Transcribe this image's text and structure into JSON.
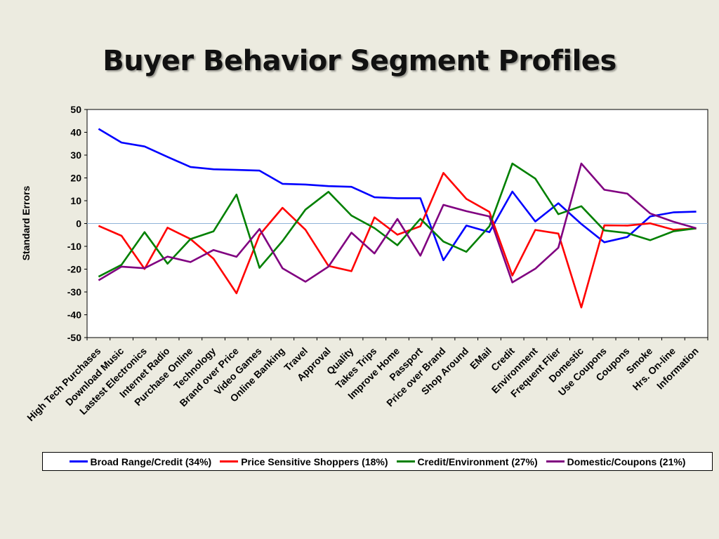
{
  "slide": {
    "title": "Buyer Behavior Segment Profiles"
  },
  "chart_data": {
    "type": "line",
    "title": "",
    "xlabel": "",
    "ylabel": "Standard Errors",
    "ylim": [
      -50,
      50
    ],
    "yticks": [
      50,
      40,
      30,
      20,
      10,
      0,
      -10,
      -20,
      -30,
      -40,
      -50
    ],
    "grid": false,
    "zero_line": true,
    "legend_position": "bottom",
    "categories": [
      "High Tech Purchases",
      "Download Music",
      "Lastest Electronics",
      "Internet Radio",
      "Purchase Online",
      "Technology",
      "Brand over Price",
      "Video Games",
      "Online Banking",
      "Travel",
      "Approval",
      "Quality",
      "Takes Trips",
      "Improve Home",
      "Passport",
      "Price over Brand",
      "Shop Around",
      "EMail",
      "Credit",
      "Environment",
      "Frequent Flier",
      "Domestic",
      "Use Coupons",
      "Coupons",
      "Smoke",
      "Hrs. On-line",
      "Information"
    ],
    "series": [
      {
        "name": "Broad Range/Credit (34%)",
        "color": "#0000ff",
        "values": [
          41.5,
          35.5,
          33.8,
          29.2,
          24.8,
          23.8,
          23.5,
          23.2,
          17.4,
          17.1,
          16.4,
          16.1,
          11.5,
          11.1,
          11.1,
          -16.1,
          -0.9,
          -3.8,
          14.0,
          0.9,
          8.9,
          -0.2,
          -8.2,
          -5.9,
          3.1,
          4.9,
          5.2
        ]
      },
      {
        "name": "Price Sensitive Shoppers (18%)",
        "color": "#ff0000",
        "values": [
          -1.0,
          -5.4,
          -19.9,
          -1.8,
          -6.8,
          -15.4,
          -30.6,
          -5.0,
          6.9,
          -2.7,
          -18.6,
          -20.9,
          2.7,
          -4.9,
          -1.2,
          22.2,
          10.8,
          5.1,
          -22.8,
          -2.8,
          -4.4,
          -36.8,
          -0.8,
          -0.9,
          0.1,
          -2.7,
          -2.2
        ]
      },
      {
        "name": "Credit/Environment (27%)",
        "color": "#008000",
        "values": [
          -23.3,
          -18.1,
          -3.8,
          -17.6,
          -6.8,
          -3.4,
          12.7,
          -19.4,
          -7.7,
          6.1,
          13.9,
          3.5,
          -2.0,
          -9.5,
          2.1,
          -7.9,
          -12.4,
          -1.2,
          26.3,
          19.7,
          4.1,
          7.6,
          -3.0,
          -4.2,
          -7.3,
          -3.4,
          -2.1
        ]
      },
      {
        "name": "Domestic/Coupons (21%)",
        "color": "#800080",
        "values": [
          -24.9,
          -18.9,
          -19.6,
          -14.5,
          -16.9,
          -11.6,
          -14.6,
          -2.4,
          -19.6,
          -25.5,
          -18.9,
          -4.0,
          -13.1,
          2.0,
          -14.1,
          8.2,
          5.4,
          3.1,
          -25.8,
          -19.8,
          -10.6,
          26.3,
          14.8,
          13.1,
          4.4,
          0.8,
          -2.1
        ]
      }
    ]
  }
}
